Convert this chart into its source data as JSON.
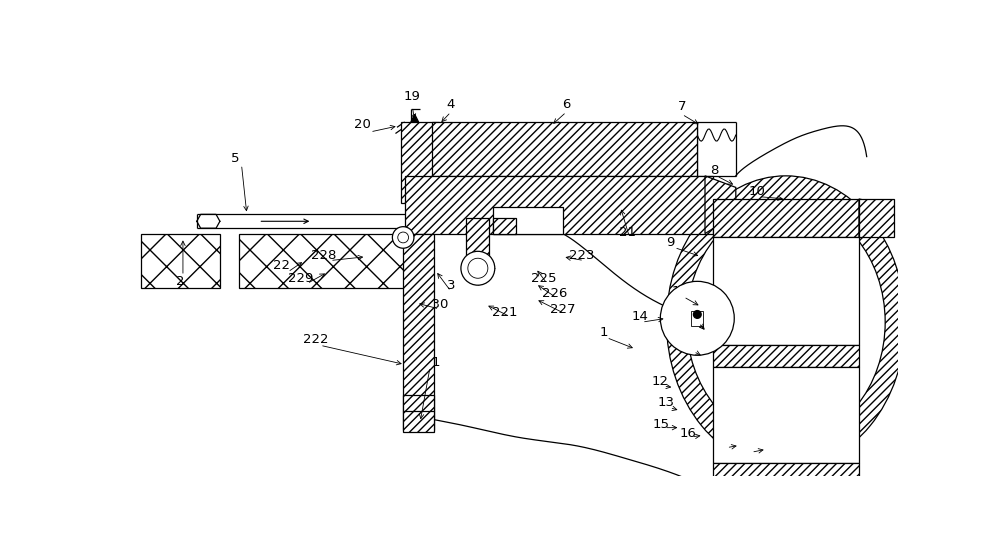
{
  "bg_color": "#ffffff",
  "line_color": "#000000",
  "figsize": [
    10.0,
    5.35
  ],
  "dpi": 100
}
